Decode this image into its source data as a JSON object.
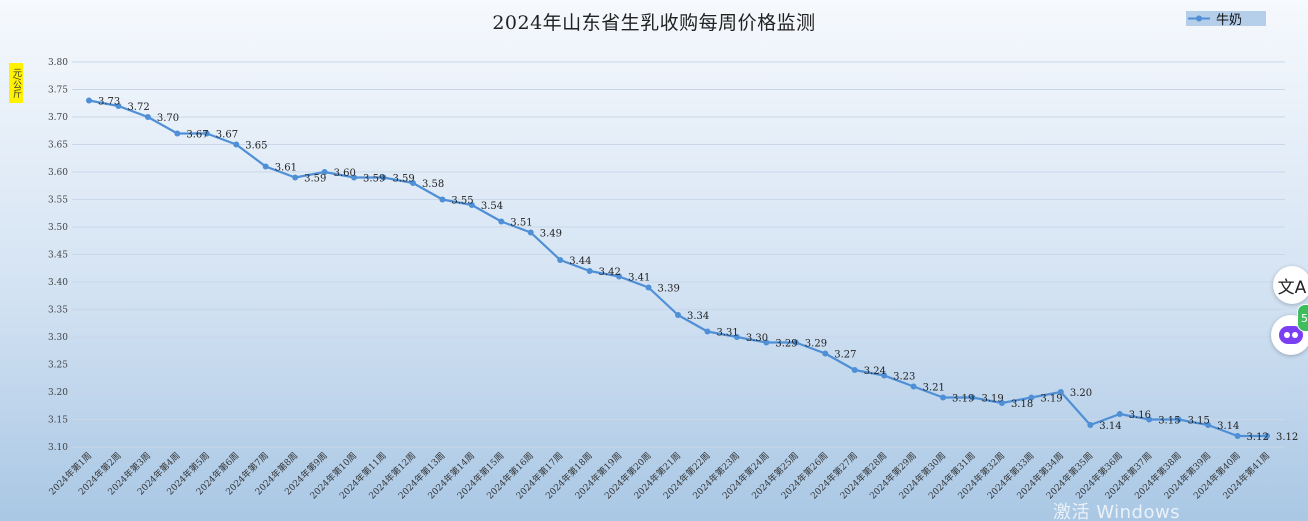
{
  "chart_data": {
    "type": "line",
    "title": "2024年山东省生乳收购每周价格监测",
    "ylabel": "元/公斤",
    "xlabel": "",
    "ylim": [
      3.1,
      3.8
    ],
    "y_ticks": [
      "3.80",
      "3.75",
      "3.70",
      "3.65",
      "3.60",
      "3.55",
      "3.50",
      "3.45",
      "3.40",
      "3.35",
      "3.30",
      "3.25",
      "3.20",
      "3.15",
      "3.10"
    ],
    "grid": true,
    "legend_position": "top-right",
    "categories": [
      "2024年第1周",
      "2024年第2周",
      "2024年第3周",
      "2024年第4周",
      "2024年第5周",
      "2024年第6周",
      "2024年第7周",
      "2024年第8周",
      "2024年第9周",
      "2024年第10周",
      "2024年第11周",
      "2024年第12周",
      "2024年第13周",
      "2024年第14周",
      "2024年第15周",
      "2024年第16周",
      "2024年第17周",
      "2024年第18周",
      "2024年第19周",
      "2024年第20周",
      "2024年第21周",
      "2024年第22周",
      "2024年第23周",
      "2024年第24周",
      "2024年第25周",
      "2024年第26周",
      "2024年第27周",
      "2024年第28周",
      "2024年第29周",
      "2024年第30周",
      "2024年第31周",
      "2024年第32周",
      "2024年第33周",
      "2024年第34周",
      "2024年第35周",
      "2024年第36周",
      "2024年第37周",
      "2024年第38周",
      "2024年第39周",
      "2024年第40周",
      "2024年第41周"
    ],
    "series": [
      {
        "name": "牛奶",
        "color": "#4f8fd6",
        "values": [
          3.73,
          3.72,
          3.7,
          3.67,
          3.67,
          3.65,
          3.61,
          3.59,
          3.6,
          3.59,
          3.59,
          3.58,
          3.55,
          3.54,
          3.51,
          3.49,
          3.44,
          3.42,
          3.41,
          3.39,
          3.34,
          3.31,
          3.3,
          3.29,
          3.29,
          3.27,
          3.24,
          3.23,
          3.21,
          3.19,
          3.19,
          3.18,
          3.19,
          3.2,
          3.14,
          3.16,
          3.15,
          3.15,
          3.14,
          3.12,
          3.12
        ],
        "labels": [
          "3.73",
          "3.72",
          "3.70",
          "3.67",
          "3.67",
          "3.65",
          "3.61",
          "3.59",
          "3.60",
          "3.59",
          "3.59",
          "3.58",
          "3.55",
          "3.54",
          "3.51",
          "3.49",
          "3.44",
          "3.42",
          "3.41",
          "3.39",
          "3.34",
          "3.31",
          "3.30",
          "3.29",
          "3.29",
          "3.27",
          "3.24",
          "3.23",
          "3.21",
          "3.19",
          "3.19",
          "3.18",
          "3.19",
          "3.20",
          "3.14",
          "3.16",
          "3.15",
          "3.15",
          "3.14",
          "3.12",
          "3.12"
        ]
      }
    ]
  },
  "legend": {
    "label": "牛奶"
  },
  "side_buttons": {
    "translate_icon": "translate-icon",
    "translate_glyph": "文A",
    "assistant_icon": "assistant-icon",
    "badge_text": "5"
  },
  "watermark": "激活 Windows",
  "colors": {
    "series": "#4f8fd6",
    "unit_badge": "#fff200",
    "grid": "#c9d7e8"
  }
}
